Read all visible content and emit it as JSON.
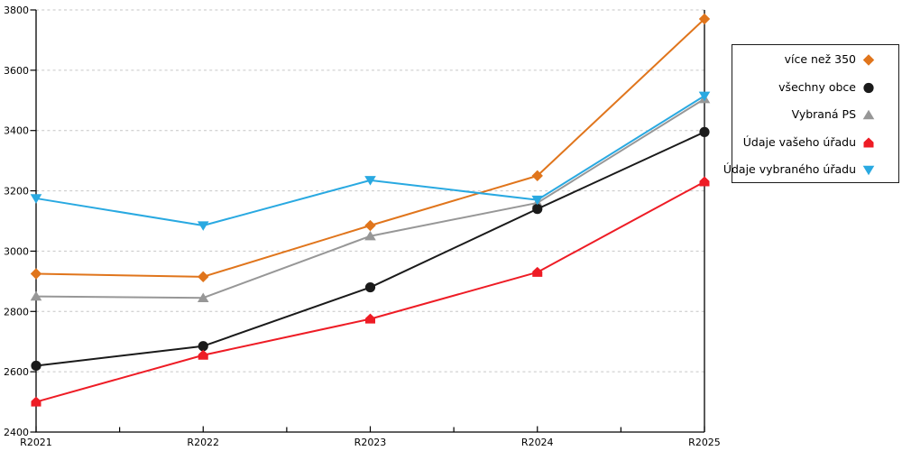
{
  "chart_data": {
    "type": "line",
    "title": "",
    "xlabel": "",
    "ylabel": "",
    "categories": [
      "R2021",
      "R2022",
      "R2023",
      "R2024",
      "R2025"
    ],
    "series": [
      {
        "name": "více než 350",
        "color": "#E0751C",
        "marker": "diamond",
        "values": [
          2925,
          2915,
          3085,
          3250,
          3770
        ]
      },
      {
        "name": "všechny obce",
        "color": "#1A1A1A",
        "marker": "circle",
        "values": [
          2620,
          2685,
          2880,
          3140,
          3395
        ]
      },
      {
        "name": "Vybraná PS",
        "color": "#979797",
        "marker": "triangle-up",
        "values": [
          2850,
          2845,
          3050,
          3160,
          3505
        ]
      },
      {
        "name": "Údaje vašeho úřadu",
        "color": "#EE1C25",
        "marker": "pentagon-up",
        "values": [
          2500,
          2655,
          2775,
          2930,
          3230
        ]
      },
      {
        "name": "Údaje vybraného úřadu",
        "color": "#29A9E1",
        "marker": "triangle-down",
        "values": [
          3175,
          3085,
          3235,
          3170,
          3515
        ]
      }
    ],
    "ylim": [
      2400,
      3800
    ],
    "y_tick_step": 200,
    "y_ticks": [
      "2400",
      "2600",
      "2800",
      "3000",
      "3200",
      "3400",
      "3600",
      "3800"
    ],
    "grid": "horizontal-dashed",
    "minor_x_ticks_between_categories": true,
    "legend_position": "outside-right",
    "legend_order": [
      "více než 350",
      "všechny obce",
      "Vybraná PS",
      "Údaje vašeho úřadu",
      "Údaje vybraného úřadu"
    ]
  },
  "colors": {
    "background": "#FFFFFF",
    "axis": "#000000",
    "grid": "#C6C6C6",
    "tick_label": "#000000",
    "legend_border": "#1A1A1A"
  }
}
